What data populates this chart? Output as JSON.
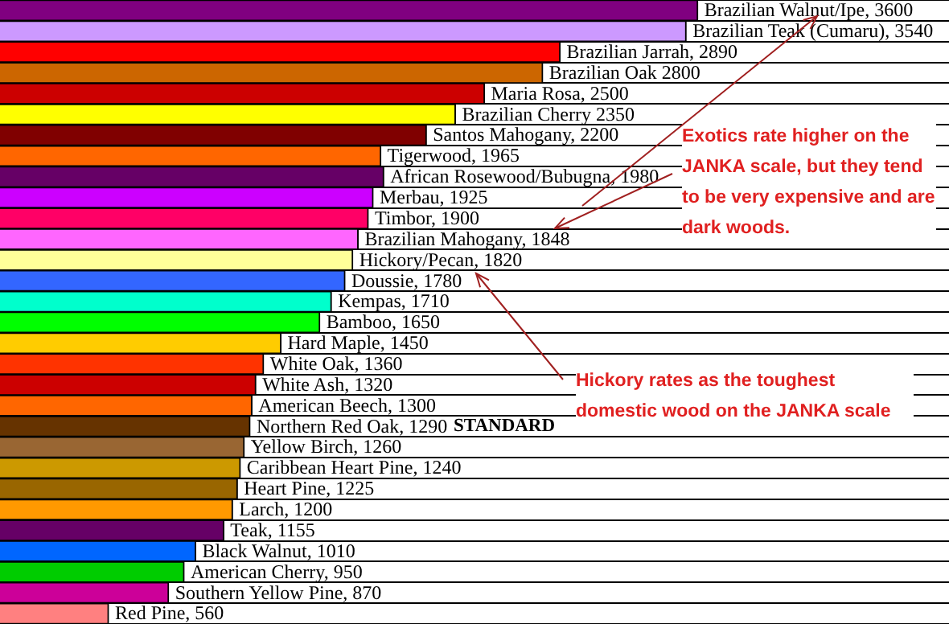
{
  "chart_data": {
    "type": "bar",
    "orientation": "horizontal",
    "categories": [
      null,
      null,
      null,
      null,
      null,
      null,
      null,
      null,
      null,
      null,
      null,
      null,
      null,
      null,
      null,
      null,
      null,
      null,
      null,
      null,
      null,
      null,
      null,
      null,
      null,
      null,
      null,
      null,
      null,
      null
    ],
    "value_labels": [
      "Brazilian Walnut/Ipe, 3600",
      "Brazilian Teak (Cumaru), 3540",
      "Brazilian Jarrah, 2890",
      "Brazilian Oak 2800",
      "Maria Rosa, 2500",
      "Brazilian Cherry 2350",
      "Santos Mahogany, 2200",
      "Tigerwood, 1965",
      "African Rosewood/Bubugna, 1980",
      "Merbau, 1925",
      "Timbor, 1900",
      "Brazilian Mahogany, 1848",
      "Hickory/Pecan, 1820",
      "Doussie, 1780",
      "Kempas, 1710",
      "Bamboo, 1650",
      "Hard Maple, 1450",
      "White Oak, 1360",
      "White Ash, 1320",
      "American Beech, 1300",
      "Northern Red Oak, 1290",
      "Yellow Birch, 1260",
      "Caribbean Heart Pine, 1240",
      "Heart Pine, 1225",
      "Larch, 1200",
      "Teak, 1155",
      "Black Walnut, 1010",
      "American Cherry, 950",
      "Southern Yellow Pine, 870",
      "Red Pine, 560"
    ],
    "values": [
      3600,
      3540,
      2890,
      2800,
      2500,
      2350,
      2200,
      1965,
      1980,
      1925,
      1900,
      1848,
      1820,
      1780,
      1710,
      1650,
      1450,
      1360,
      1320,
      1300,
      1290,
      1260,
      1240,
      1225,
      1200,
      1155,
      1010,
      950,
      870,
      560
    ],
    "colors": [
      "#800080",
      "#cc99ff",
      "#ff0000",
      "#cc6600",
      "#cc0000",
      "#ffff00",
      "#800000",
      "#ff6600",
      "#660066",
      "#cc00ff",
      "#ff0066",
      "#ff66ff",
      "#ffff99",
      "#3366ff",
      "#00ffcc",
      "#00ff00",
      "#ffcc00",
      "#ff3300",
      "#cc0000",
      "#ff6600",
      "#663300",
      "#996633",
      "#cc9900",
      "#996600",
      "#ff9900",
      "#660066",
      "#0066ff",
      "#00cc00",
      "#cc0099",
      "#ff8080"
    ],
    "grid": "y",
    "legend": false,
    "annotations": [
      "Exotics rate higher on the JANKA scale, but they tend to be very expensive and are dark woods.",
      "Hickory rates as the toughest domestic wood on the JANKA scale",
      "STANDARD"
    ]
  }
}
